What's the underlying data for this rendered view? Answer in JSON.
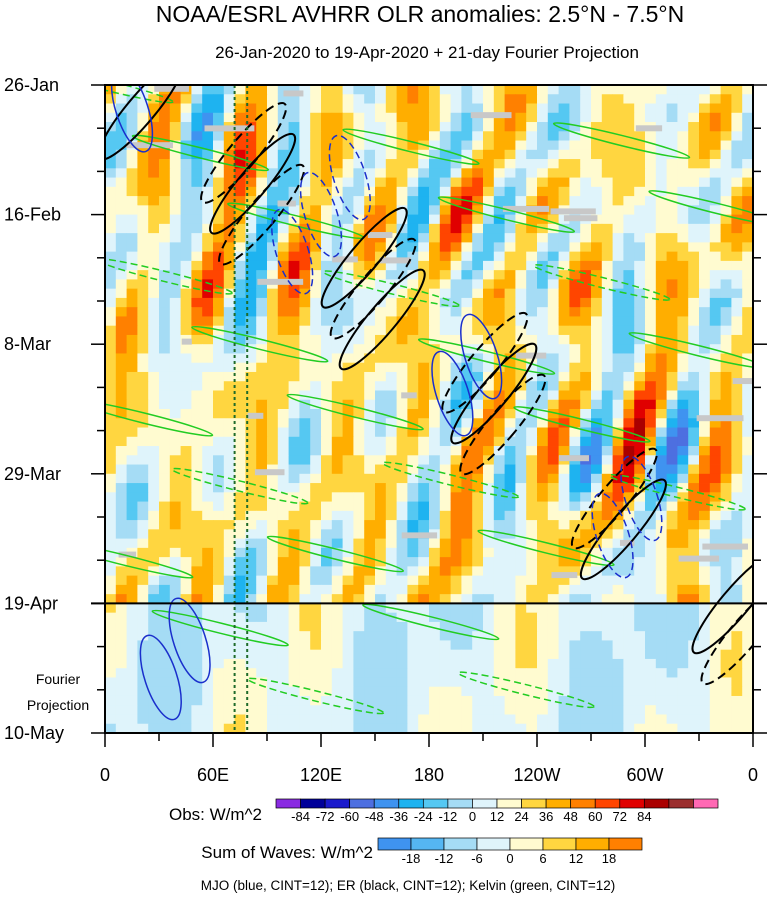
{
  "chart_data": {
    "type": "heatmap",
    "title": "NOAA/ESRL AVHRR OLR anomalies: 2.5°N - 7.5°N",
    "subtitle": "26-Jan-2020 to 19-Apr-2020 + 21-day Fourier Projection",
    "x_tick_labels": [
      "0",
      "60E",
      "120E",
      "180",
      "120W",
      "60W",
      "0"
    ],
    "x_ticks_deg": [
      0,
      60,
      120,
      180,
      240,
      300,
      360
    ],
    "xlim": [
      0,
      360
    ],
    "y_tick_labels": [
      "26-Jan",
      "16-Feb",
      "8-Mar",
      "29-Mar",
      "19-Apr",
      "10-May"
    ],
    "y_ticks_day": [
      0,
      21,
      42,
      63,
      84,
      105
    ],
    "ylim": [
      0,
      105
    ],
    "projection_start_day": 84,
    "projection_label": [
      "Fourier",
      "Projection"
    ],
    "reference_lines_deg": [
      72,
      79
    ],
    "obs_colorbar": {
      "label": "Obs: W/m^2",
      "levels": [
        "-84",
        "-72",
        "-60",
        "-48",
        "-36",
        "-24",
        "-12",
        "0",
        "12",
        "24",
        "36",
        "48",
        "60",
        "72",
        "84"
      ],
      "colors": [
        "#8a2be2",
        "#000099",
        "#1a1acc",
        "#4d6fe0",
        "#3f93f0",
        "#1eb3f0",
        "#55c8f2",
        "#a5dcf5",
        "#dff4fb",
        "#fffbd0",
        "#ffd640",
        "#ffae00",
        "#ff8000",
        "#ff4500",
        "#e00000",
        "#aa0000",
        "#9b2f2f",
        "#ff69b4"
      ]
    },
    "waves_colorbar": {
      "label": "Sum of Waves: W/m^2",
      "levels": [
        "-18",
        "-12",
        "-6",
        "0",
        "6",
        "12",
        "18"
      ],
      "colors": [
        "#3f93f0",
        "#55b6f2",
        "#a5dcf5",
        "#dff4fb",
        "#fffbd0",
        "#ffd640",
        "#ffae00",
        "#ff8000"
      ]
    },
    "footer": "MJO (blue, CINT=12); ER (black, CINT=12); Kelvin (green, CINT=12)",
    "contour_colors": {
      "mjo": "#1a2fcc",
      "er": "#000000",
      "kelvin": "#22cc22"
    }
  }
}
